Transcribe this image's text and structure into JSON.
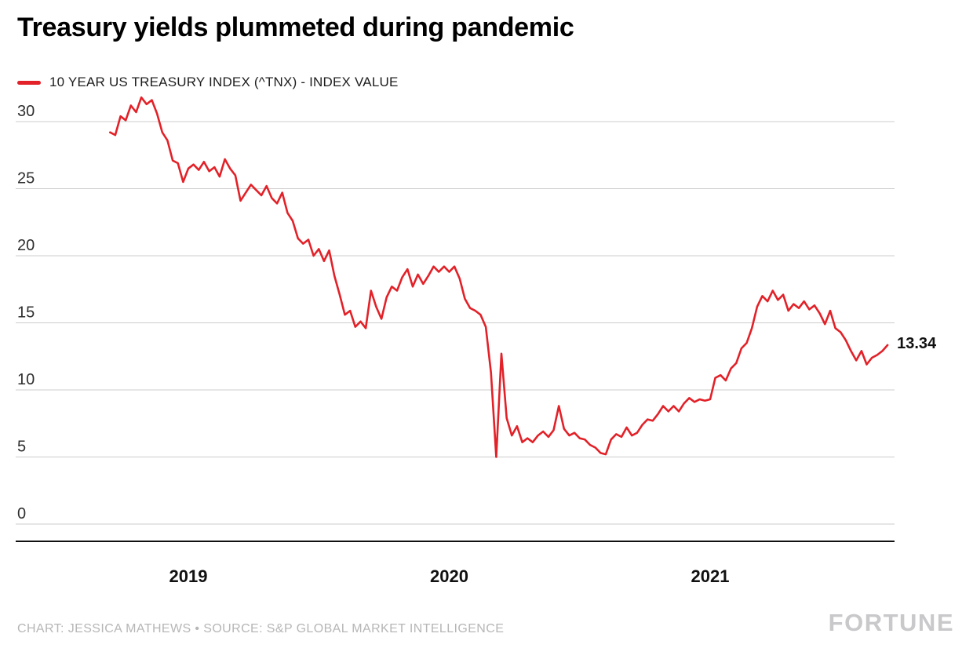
{
  "page": {
    "title": "Treasury yields plummeted during pandemic",
    "footer_credit": "CHART: JESSICA MATHEWS • SOURCE: S&P GLOBAL MARKET INTELLIGENCE",
    "brand": "FORTUNE"
  },
  "legend": {
    "series_label": "10 YEAR US TREASURY INDEX (^TNX) - INDEX VALUE"
  },
  "annotations": {
    "end_value_label": "13.34"
  },
  "colors": {
    "line": "#e22128",
    "grid": "#cccccc",
    "axis": "#111111",
    "text": "#111111",
    "muted_text": "#b6b6b6",
    "brand": "#c9c9cb"
  },
  "chart_data": {
    "type": "line",
    "title": "Treasury yields plummeted during pandemic",
    "xlabel": "",
    "ylabel": "",
    "grid": "horizontal",
    "legend_position": "top-left",
    "ylim": [
      0,
      32
    ],
    "yticks": [
      0,
      5,
      10,
      15,
      20,
      25,
      30
    ],
    "x_ticks": [
      {
        "label": "2019",
        "value": 2019
      },
      {
        "label": "2020",
        "value": 2020
      },
      {
        "label": "2021",
        "value": 2021
      }
    ],
    "x_unit": "decimal_year",
    "x_start": 2018.7,
    "x_step": 0.02,
    "end_value": 13.34,
    "series": [
      {
        "name": "10 YEAR US TREASURY INDEX (^TNX) - INDEX VALUE",
        "color": "#e22128",
        "values": [
          29.2,
          29.0,
          30.4,
          30.1,
          31.2,
          30.7,
          31.8,
          31.3,
          31.6,
          30.6,
          29.2,
          28.6,
          27.1,
          26.9,
          25.5,
          26.5,
          26.8,
          26.4,
          27.0,
          26.3,
          26.6,
          25.9,
          27.2,
          26.5,
          26.0,
          24.1,
          24.7,
          25.3,
          24.9,
          24.5,
          25.2,
          24.3,
          23.9,
          24.7,
          23.2,
          22.6,
          21.3,
          20.9,
          21.2,
          20.0,
          20.5,
          19.6,
          20.4,
          18.5,
          17.1,
          15.6,
          15.9,
          14.7,
          15.1,
          14.6,
          17.4,
          16.2,
          15.3,
          16.9,
          17.7,
          17.4,
          18.4,
          19.0,
          17.7,
          18.6,
          17.9,
          18.5,
          19.2,
          18.8,
          19.2,
          18.8,
          19.2,
          18.3,
          16.8,
          16.1,
          15.9,
          15.6,
          14.7,
          11.3,
          5.0,
          12.7,
          7.9,
          6.6,
          7.3,
          6.1,
          6.4,
          6.1,
          6.6,
          6.9,
          6.5,
          7.0,
          8.8,
          7.1,
          6.6,
          6.8,
          6.4,
          6.3,
          5.9,
          5.7,
          5.3,
          5.2,
          6.3,
          6.7,
          6.5,
          7.2,
          6.6,
          6.8,
          7.4,
          7.8,
          7.7,
          8.2,
          8.8,
          8.4,
          8.8,
          8.4,
          9.0,
          9.4,
          9.1,
          9.3,
          9.2,
          9.3,
          10.9,
          11.1,
          10.7,
          11.6,
          12.0,
          13.1,
          13.5,
          14.6,
          16.2,
          17.0,
          16.6,
          17.4,
          16.7,
          17.1,
          15.9,
          16.4,
          16.1,
          16.6,
          16.0,
          16.3,
          15.7,
          14.9,
          15.9,
          14.6,
          14.3,
          13.7,
          12.9,
          12.2,
          12.9,
          11.9,
          12.4,
          12.6,
          12.9,
          13.34
        ]
      }
    ]
  }
}
